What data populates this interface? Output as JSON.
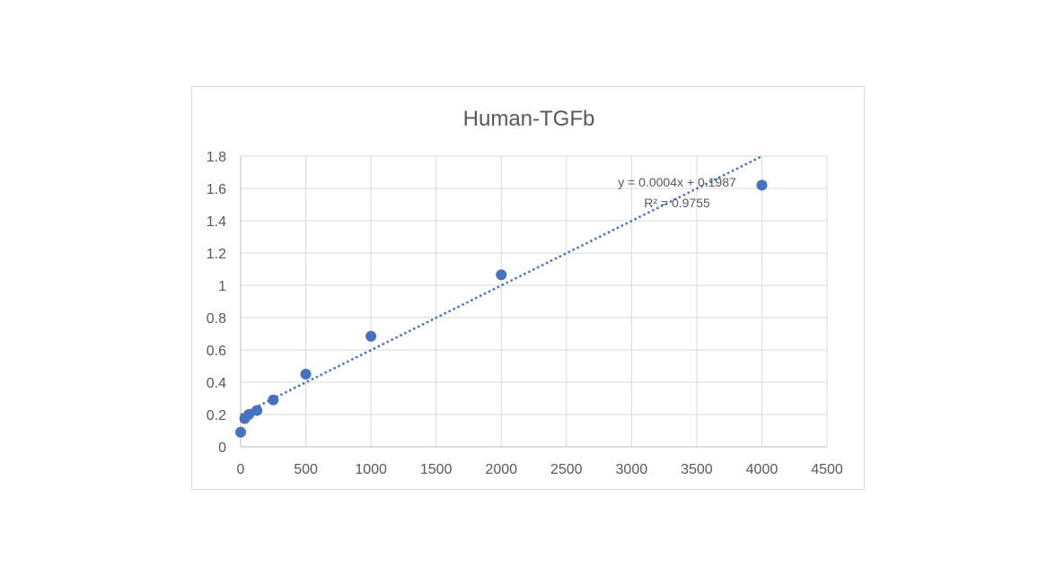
{
  "chart_data": {
    "type": "scatter",
    "title": "Human-TGFb",
    "xlabel": "",
    "ylabel": "",
    "xlim": [
      0,
      4500
    ],
    "ylim": [
      0,
      1.8
    ],
    "x_ticks": [
      0,
      500,
      1000,
      1500,
      2000,
      2500,
      3000,
      3500,
      4000,
      4500
    ],
    "y_ticks": [
      0,
      0.2,
      0.4,
      0.6,
      0.8,
      1,
      1.2,
      1.4,
      1.6,
      1.8
    ],
    "x_tick_labels": [
      "0",
      "500",
      "1000",
      "1500",
      "2000",
      "2500",
      "3000",
      "3500",
      "4000",
      "4500"
    ],
    "y_tick_labels": [
      "0",
      "0.2",
      "0.4",
      "0.6",
      "0.8",
      "1",
      "1.2",
      "1.4",
      "1.6",
      "1.8"
    ],
    "grid": true,
    "legend": false,
    "series": [
      {
        "color": "#4472c4",
        "points": [
          {
            "x": 0,
            "y": 0.09
          },
          {
            "x": 31.25,
            "y": 0.175
          },
          {
            "x": 62.5,
            "y": 0.2
          },
          {
            "x": 125,
            "y": 0.225
          },
          {
            "x": 250,
            "y": 0.29
          },
          {
            "x": 500,
            "y": 0.45
          },
          {
            "x": 1000,
            "y": 0.685
          },
          {
            "x": 2000,
            "y": 1.065
          },
          {
            "x": 4000,
            "y": 1.62
          }
        ]
      }
    ],
    "trendline": {
      "type": "linear",
      "slope": 0.0004,
      "intercept": 0.1987,
      "x_range": [
        0,
        4000
      ],
      "color": "#4472c4",
      "equation_label": "y = 0.0004x + 0.1987",
      "r2_label": "R² = 0.9755"
    }
  }
}
